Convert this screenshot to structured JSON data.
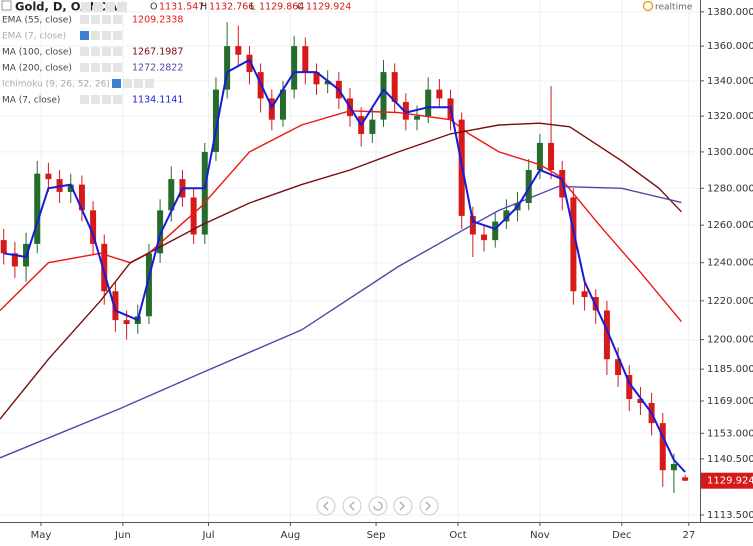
{
  "chart_data": {
    "type": "candlestick",
    "title": "Gold, D, OANDA",
    "ohlc_labels": [
      "O",
      "H",
      "L",
      "C"
    ],
    "status": "realtime",
    "log_scale": true,
    "grid": true,
    "up_color": "#256b2c",
    "down_color": "#d61919",
    "xlim": [
      0,
      188
    ],
    "ylim": [
      1110.2,
      1387
    ],
    "xticks": [
      {
        "value": 11,
        "label": "May"
      },
      {
        "value": 33,
        "label": "Jun"
      },
      {
        "value": 56,
        "label": "Jul"
      },
      {
        "value": 78,
        "label": "Aug"
      },
      {
        "value": 101,
        "label": "Sep"
      },
      {
        "value": 123,
        "label": "Oct"
      },
      {
        "value": 145,
        "label": "Nov"
      },
      {
        "value": 167,
        "label": "Dec"
      },
      {
        "value": 185,
        "label": "27"
      }
    ],
    "yticks": [
      {
        "value": 1380,
        "label": "1380.000"
      },
      {
        "value": 1360,
        "label": "1360.000"
      },
      {
        "value": 1340,
        "label": "1340.000"
      },
      {
        "value": 1320,
        "label": "1320.000"
      },
      {
        "value": 1300,
        "label": "1300.000"
      },
      {
        "value": 1280,
        "label": "1280.000"
      },
      {
        "value": 1260,
        "label": "1260.000"
      },
      {
        "value": 1240,
        "label": "1240.000"
      },
      {
        "value": 1220,
        "label": "1220.000"
      },
      {
        "value": 1200,
        "label": "1200.000"
      },
      {
        "value": 1185,
        "label": "1185.000"
      },
      {
        "value": 1169,
        "label": "1169.000"
      },
      {
        "value": 1153,
        "label": "1153.000"
      },
      {
        "value": 1140.5,
        "label": "1140.500"
      },
      {
        "value": 1113.5,
        "label": "1113.500"
      }
    ],
    "x": [
      1,
      4,
      7,
      10,
      13,
      16,
      19,
      22,
      25,
      28,
      31,
      34,
      37,
      40,
      43,
      46,
      49,
      52,
      55,
      58,
      61,
      64,
      67,
      70,
      73,
      76,
      79,
      82,
      85,
      88,
      91,
      94,
      97,
      100,
      103,
      106,
      109,
      112,
      115,
      118,
      121,
      124,
      127,
      130,
      133,
      136,
      139,
      142,
      145,
      148,
      151,
      154,
      157,
      160,
      163,
      166,
      169,
      172,
      175,
      178,
      181,
      184
    ],
    "open": [
      1252,
      1245,
      1238,
      1250,
      1288,
      1285,
      1278,
      1282,
      1268,
      1250,
      1225,
      1210,
      1208,
      1212,
      1245,
      1268,
      1285,
      1275,
      1255,
      1300,
      1335,
      1360,
      1355,
      1345,
      1330,
      1318,
      1335,
      1360,
      1345,
      1338,
      1340,
      1330,
      1320,
      1310,
      1318,
      1345,
      1328,
      1318,
      1320,
      1335,
      1330,
      1318,
      1265,
      1255,
      1252,
      1262,
      1268,
      1272,
      1290,
      1305,
      1290,
      1275,
      1225,
      1222,
      1215,
      1190,
      1182,
      1170,
      1168,
      1158,
      1135,
      1131.547
    ],
    "high": [
      1258,
      1251,
      1256,
      1295,
      1294,
      1290,
      1288,
      1287,
      1273,
      1255,
      1230,
      1215,
      1218,
      1250,
      1274,
      1292,
      1290,
      1280,
      1305,
      1342,
      1374,
      1372,
      1360,
      1350,
      1335,
      1340,
      1366,
      1365,
      1350,
      1346,
      1345,
      1336,
      1325,
      1324,
      1352,
      1350,
      1333,
      1326,
      1342,
      1341,
      1335,
      1322,
      1270,
      1260,
      1267,
      1274,
      1278,
      1296,
      1310,
      1337,
      1295,
      1280,
      1232,
      1226,
      1220,
      1196,
      1187,
      1176,
      1173,
      1163,
      1143,
      1132.766
    ],
    "low": [
      1239,
      1232,
      1230,
      1245,
      1278,
      1272,
      1272,
      1262,
      1244,
      1218,
      1204,
      1200,
      1203,
      1208,
      1240,
      1262,
      1270,
      1250,
      1250,
      1295,
      1330,
      1348,
      1338,
      1322,
      1312,
      1314,
      1330,
      1338,
      1332,
      1333,
      1324,
      1314,
      1303,
      1305,
      1314,
      1322,
      1312,
      1312,
      1316,
      1325,
      1312,
      1258,
      1243,
      1246,
      1248,
      1258,
      1262,
      1268,
      1285,
      1285,
      1268,
      1218,
      1215,
      1208,
      1182,
      1176,
      1164,
      1162,
      1152,
      1127,
      1124,
      1129.864
    ],
    "close": [
      1245,
      1238,
      1250,
      1288,
      1285,
      1278,
      1282,
      1268,
      1250,
      1225,
      1210,
      1208,
      1212,
      1245,
      1268,
      1285,
      1275,
      1255,
      1300,
      1335,
      1360,
      1355,
      1345,
      1330,
      1318,
      1335,
      1360,
      1345,
      1338,
      1340,
      1330,
      1320,
      1310,
      1318,
      1345,
      1328,
      1318,
      1320,
      1335,
      1330,
      1318,
      1265,
      1255,
      1252,
      1262,
      1268,
      1272,
      1290,
      1305,
      1290,
      1275,
      1225,
      1222,
      1215,
      1190,
      1182,
      1170,
      1168,
      1158,
      1135,
      1138,
      1129.924
    ],
    "indicators": [
      {
        "name": "EMA (55, close)",
        "color": "#f01616",
        "legend_value": 1209.2338,
        "x": [
          0,
          13,
          27,
          35,
          40,
          54,
          67,
          81,
          94,
          107,
          121,
          126,
          134,
          145,
          150,
          161,
          172,
          183
        ],
        "values": [
          1215,
          1240,
          1245,
          1240,
          1245,
          1270,
          1300,
          1315,
          1323,
          1322,
          1318,
          1310,
          1300,
          1293,
          1287,
          1260,
          1235,
          1209.2338
        ]
      },
      {
        "name": "EMA (7, close)",
        "hidden": true
      },
      {
        "name": "MA (100, close)",
        "color": "#7a0c0c",
        "legend_value": 1267.1987,
        "x": [
          0,
          13,
          27,
          35,
          54,
          67,
          81,
          94,
          107,
          121,
          134,
          145,
          153,
          167,
          177,
          183
        ],
        "values": [
          1160,
          1190,
          1220,
          1240,
          1260,
          1272,
          1282,
          1290,
          1300,
          1310,
          1315,
          1316,
          1314,
          1295,
          1280,
          1267.1987
        ]
      },
      {
        "name": "MA (200, close)",
        "color": "#4b4ba6",
        "legend_value": 1272.2822,
        "x": [
          0,
          32,
          54,
          81,
          107,
          124,
          134,
          150,
          167,
          183
        ],
        "values": [
          1141,
          1165,
          1183,
          1205,
          1238,
          1257,
          1268,
          1281,
          1280,
          1272.2822
        ]
      },
      {
        "name": "Ichimoku (9, 26, 52, 26)",
        "hidden": true
      },
      {
        "name": "MA (7, close)",
        "color": "#1a1adb",
        "legend_value": 1134.1141,
        "x": [
          1,
          7,
          13,
          19,
          25,
          31,
          37,
          43,
          49,
          55,
          61,
          67,
          73,
          79,
          85,
          91,
          97,
          103,
          109,
          115,
          121,
          127,
          133,
          139,
          145,
          151,
          157,
          163,
          169,
          175,
          181,
          184
        ],
        "values": [
          1245,
          1243,
          1280,
          1282,
          1255,
          1215,
          1210,
          1255,
          1280,
          1280,
          1345,
          1352,
          1325,
          1345,
          1345,
          1335,
          1315,
          1335,
          1322,
          1325,
          1325,
          1262,
          1258,
          1270,
          1290,
          1285,
          1230,
          1205,
          1178,
          1163,
          1140,
          1134.1141
        ]
      }
    ]
  }
}
